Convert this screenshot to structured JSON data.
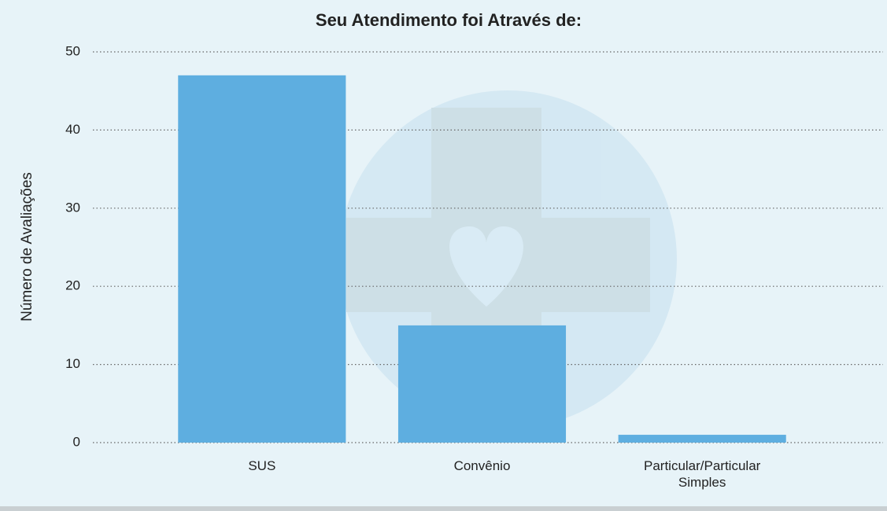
{
  "chart_data": {
    "type": "bar",
    "title": "Seu Atendimento foi Através de:",
    "y_label": "Número de Avaliações",
    "categories": [
      "SUS",
      "Convênio",
      "Particular/Particular Simples"
    ],
    "values": [
      47,
      15,
      1
    ],
    "color": "#5eaee0",
    "ylim": [
      0,
      50
    ],
    "yticks": [
      0,
      10,
      20,
      30,
      40,
      50
    ],
    "grid": true
  }
}
